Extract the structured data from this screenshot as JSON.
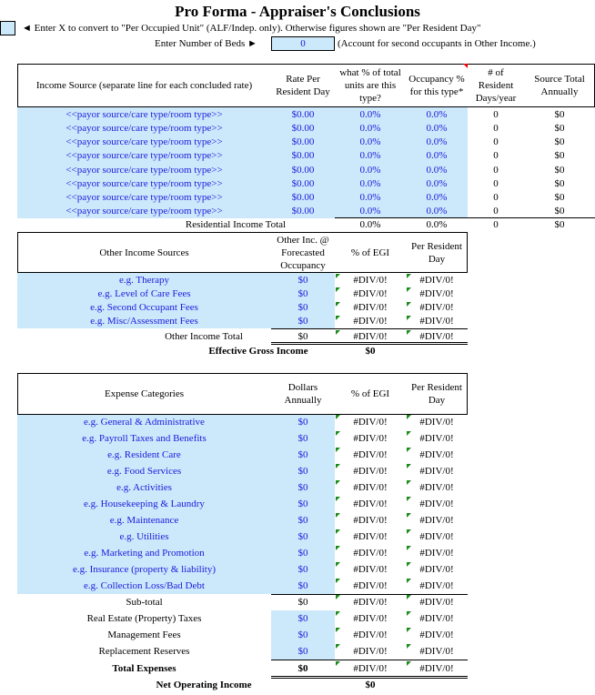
{
  "title": "Pro Forma - Appraiser's Conclusions",
  "convert_note": "◄ Enter X to convert to \"Per Occupied Unit\" (ALF/Indep. only). Otherwise figures shown are \"Per Resident Day\"",
  "beds_label": "Enter Number of Beds ►",
  "beds_value": "0",
  "beds_note": "(Account for second occupants in Other Income.)",
  "income": {
    "headers": [
      "Income Source (separate line for each concluded rate)",
      "Rate Per Resident Day",
      "what % of total units are this type?",
      "Occupancy % for this type*",
      "# of Resident Days/year",
      "Source Total Annually"
    ],
    "rows": [
      [
        "<<payor source/care type/room type>>",
        "$0.00",
        "0.0%",
        "0.0%",
        "0",
        "$0"
      ],
      [
        "<<payor source/care type/room type>>",
        "$0.00",
        "0.0%",
        "0.0%",
        "0",
        "$0"
      ],
      [
        "<<payor source/care type/room type>>",
        "$0.00",
        "0.0%",
        "0.0%",
        "0",
        "$0"
      ],
      [
        "<<payor source/care type/room type>>",
        "$0.00",
        "0.0%",
        "0.0%",
        "0",
        "$0"
      ],
      [
        "<<payor source/care type/room type>>",
        "$0.00",
        "0.0%",
        "0.0%",
        "0",
        "$0"
      ],
      [
        "<<payor source/care type/room type>>",
        "$0.00",
        "0.0%",
        "0.0%",
        "0",
        "$0"
      ],
      [
        "<<payor source/care type/room type>>",
        "$0.00",
        "0.0%",
        "0.0%",
        "0",
        "$0"
      ],
      [
        "<<payor source/care type/room type>>",
        "$0.00",
        "0.0%",
        "0.0%",
        "0",
        "$0"
      ]
    ],
    "total": [
      "Residential Income Total",
      "0.0%",
      "0.0%",
      "0",
      "$0"
    ]
  },
  "other": {
    "headers": [
      "Other Income Sources",
      "Other Inc. @ Forecasted Occupancy",
      "% of EGI",
      "Per Resident Day"
    ],
    "rows": [
      [
        "e.g. Therapy",
        "$0",
        "#DIV/0!",
        "#DIV/0!"
      ],
      [
        "e.g. Level of Care Fees",
        "$0",
        "#DIV/0!",
        "#DIV/0!"
      ],
      [
        "e.g. Second Occupant Fees",
        "$0",
        "#DIV/0!",
        "#DIV/0!"
      ],
      [
        "e.g. Misc/Assessment Fees",
        "$0",
        "#DIV/0!",
        "#DIV/0!"
      ]
    ],
    "total": [
      "Other Income Total",
      "$0",
      "#DIV/0!",
      "#DIV/0!"
    ],
    "egi": [
      "Effective Gross Income",
      "$0"
    ]
  },
  "expenses": {
    "headers": [
      "Expense Categories",
      "Dollars Annually",
      "% of EGI",
      "Per Resident Day"
    ],
    "rows": [
      [
        "e.g. General & Administrative",
        "$0",
        "#DIV/0!",
        "#DIV/0!"
      ],
      [
        "e.g. Payroll Taxes and Benefits",
        "$0",
        "#DIV/0!",
        "#DIV/0!"
      ],
      [
        "e.g. Resident Care",
        "$0",
        "#DIV/0!",
        "#DIV/0!"
      ],
      [
        "e.g. Food Services",
        "$0",
        "#DIV/0!",
        "#DIV/0!"
      ],
      [
        "e.g. Activities",
        "$0",
        "#DIV/0!",
        "#DIV/0!"
      ],
      [
        "e.g. Housekeeping  & Laundry",
        "$0",
        "#DIV/0!",
        "#DIV/0!"
      ],
      [
        "e.g. Maintenance",
        "$0",
        "#DIV/0!",
        "#DIV/0!"
      ],
      [
        "e.g. Utilities",
        "$0",
        "#DIV/0!",
        "#DIV/0!"
      ],
      [
        "e.g. Marketing and Promotion",
        "$0",
        "#DIV/0!",
        "#DIV/0!"
      ],
      [
        "e.g. Insurance (property & liability)",
        "$0",
        "#DIV/0!",
        "#DIV/0!"
      ],
      [
        "e.g. Collection Loss/Bad Debt",
        "$0",
        "#DIV/0!",
        "#DIV/0!"
      ]
    ],
    "subtotal": [
      "Sub-total",
      "$0",
      "#DIV/0!",
      "#DIV/0!"
    ],
    "fixed": [
      [
        "Real Estate (Property) Taxes",
        "$0",
        "#DIV/0!",
        "#DIV/0!"
      ],
      [
        "Management Fees",
        "$0",
        "#DIV/0!",
        "#DIV/0!"
      ],
      [
        "Replacement Reserves",
        "$0",
        "#DIV/0!",
        "#DIV/0!"
      ]
    ],
    "total": [
      "Total Expenses",
      "$0",
      "#DIV/0!",
      "#DIV/0!"
    ],
    "noi": [
      "Net Operating Income",
      "$0"
    ]
  }
}
